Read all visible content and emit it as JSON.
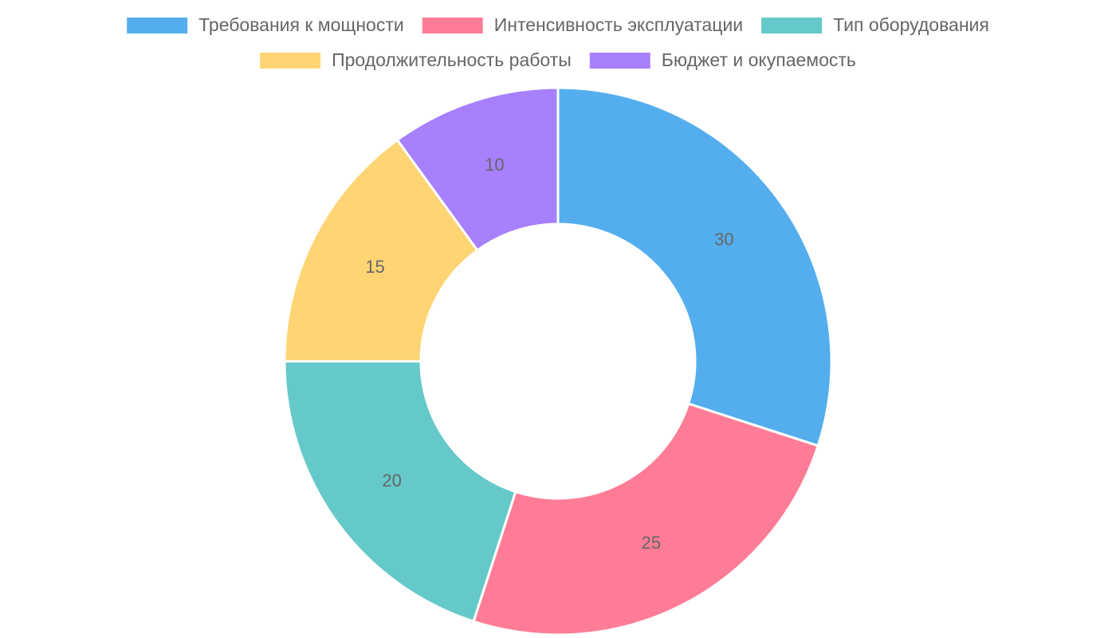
{
  "chart_data": {
    "type": "doughnut",
    "categories": [
      "Требования к мощности",
      "Интенсивность эксплуатации",
      "Тип оборудования",
      "Продолжительность работы",
      "Бюджет и окупаемость"
    ],
    "values": [
      30,
      25,
      20,
      15,
      10
    ],
    "colors": [
      "#54aeee",
      "#ff7c96",
      "#66c9c9",
      "#ffd573",
      "#a780fd"
    ],
    "legend": "top"
  }
}
